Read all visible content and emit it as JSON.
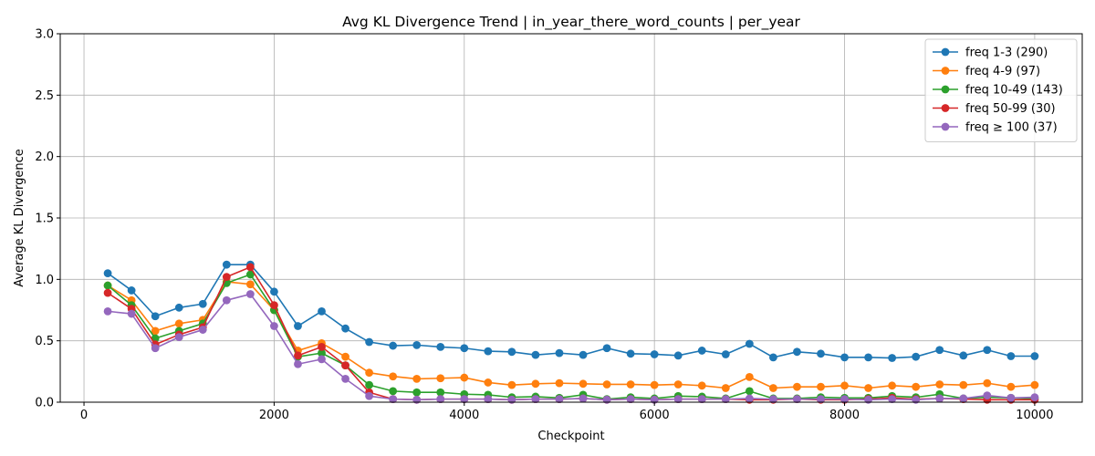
{
  "chart_data": {
    "type": "line",
    "title": "Avg KL Divergence Trend | in_year_there_word_counts | per_year",
    "xlabel": "Checkpoint",
    "ylabel": "Average KL Divergence",
    "xlim": [
      -250,
      10500
    ],
    "ylim": [
      0,
      3.0
    ],
    "xticks": [
      0,
      2000,
      4000,
      6000,
      8000,
      10000
    ],
    "yticks": [
      0.0,
      0.5,
      1.0,
      1.5,
      2.0,
      2.5,
      3.0
    ],
    "xtick_labels": [
      "0",
      "2000",
      "4000",
      "6000",
      "8000",
      "10000"
    ],
    "ytick_labels": [
      "0.0",
      "0.5",
      "1.0",
      "1.5",
      "2.0",
      "2.5",
      "3.0"
    ],
    "grid": true,
    "legend_position": "top-right",
    "x": [
      250,
      500,
      750,
      1000,
      1250,
      1500,
      1750,
      2000,
      2250,
      2500,
      2750,
      3000,
      3250,
      3500,
      3750,
      4000,
      4250,
      4500,
      4750,
      5000,
      5250,
      5500,
      5750,
      6000,
      6250,
      6500,
      6750,
      7000,
      7250,
      7500,
      7750,
      8000,
      8250,
      8500,
      8750,
      9000,
      9250,
      9500,
      9750,
      10000
    ],
    "series": [
      {
        "name": "freq 1-3 (290)",
        "color": "#1f77b4",
        "values": [
          1.05,
          0.91,
          0.7,
          0.77,
          0.8,
          1.12,
          1.12,
          0.9,
          0.62,
          0.74,
          0.6,
          0.49,
          0.46,
          0.465,
          0.45,
          0.44,
          0.415,
          0.41,
          0.385,
          0.4,
          0.385,
          0.44,
          0.395,
          0.39,
          0.38,
          0.42,
          0.39,
          0.475,
          0.365,
          0.41,
          0.395,
          0.365,
          0.365,
          0.36,
          0.37,
          0.425,
          0.38,
          0.425,
          0.375,
          0.375
        ]
      },
      {
        "name": "freq 4-9 (97)",
        "color": "#ff7f0e",
        "values": [
          0.95,
          0.83,
          0.58,
          0.64,
          0.67,
          0.98,
          0.96,
          0.75,
          0.42,
          0.48,
          0.37,
          0.24,
          0.21,
          0.19,
          0.195,
          0.2,
          0.16,
          0.14,
          0.15,
          0.155,
          0.15,
          0.145,
          0.145,
          0.14,
          0.145,
          0.135,
          0.115,
          0.205,
          0.115,
          0.125,
          0.125,
          0.135,
          0.115,
          0.135,
          0.125,
          0.145,
          0.14,
          0.155,
          0.125,
          0.14
        ]
      },
      {
        "name": "freq 10-49 (143)",
        "color": "#2ca02c",
        "values": [
          0.95,
          0.79,
          0.52,
          0.58,
          0.64,
          0.97,
          1.04,
          0.75,
          0.37,
          0.4,
          0.3,
          0.14,
          0.09,
          0.08,
          0.08,
          0.065,
          0.06,
          0.04,
          0.045,
          0.035,
          0.06,
          0.025,
          0.04,
          0.03,
          0.05,
          0.045,
          0.03,
          0.09,
          0.03,
          0.03,
          0.04,
          0.035,
          0.035,
          0.05,
          0.04,
          0.065,
          0.03,
          0.04,
          0.035,
          0.03
        ]
      },
      {
        "name": "freq 50-99 (30)",
        "color": "#d62728",
        "values": [
          0.89,
          0.76,
          0.47,
          0.55,
          0.61,
          1.02,
          1.1,
          0.79,
          0.38,
          0.45,
          0.3,
          0.08,
          0.025,
          0.02,
          0.025,
          0.025,
          0.025,
          0.02,
          0.025,
          0.025,
          0.03,
          0.02,
          0.025,
          0.02,
          0.025,
          0.025,
          0.025,
          0.02,
          0.02,
          0.025,
          0.02,
          0.02,
          0.025,
          0.035,
          0.025,
          0.03,
          0.025,
          0.02,
          0.02,
          0.02
        ]
      },
      {
        "name": "freq ≥ 100 (37)",
        "color": "#9467bd",
        "values": [
          0.74,
          0.72,
          0.44,
          0.53,
          0.59,
          0.83,
          0.88,
          0.62,
          0.31,
          0.35,
          0.19,
          0.05,
          0.025,
          0.02,
          0.025,
          0.025,
          0.025,
          0.02,
          0.025,
          0.025,
          0.03,
          0.02,
          0.025,
          0.02,
          0.025,
          0.025,
          0.025,
          0.03,
          0.025,
          0.025,
          0.025,
          0.025,
          0.02,
          0.025,
          0.02,
          0.03,
          0.03,
          0.055,
          0.035,
          0.04
        ]
      }
    ]
  }
}
